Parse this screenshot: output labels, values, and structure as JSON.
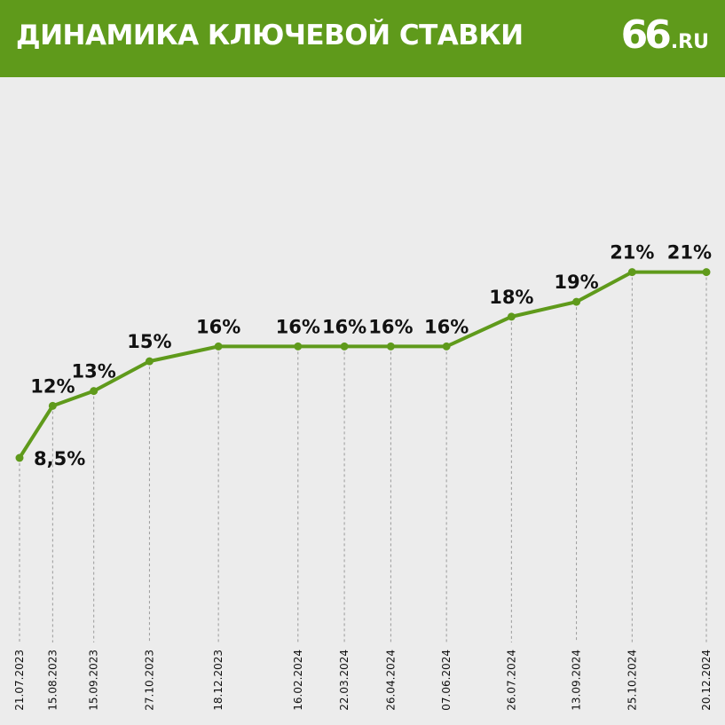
{
  "header": {
    "title": "ДИНАМИКА КЛЮЧЕВОЙ СТАВКИ",
    "logo_number": "66",
    "logo_domain": ".RU"
  },
  "colors": {
    "header_bg": "#5f9a1b",
    "line": "#5f9a1b",
    "background": "#ececec",
    "grid": "#9a9a9a"
  },
  "chart_data": {
    "type": "line",
    "title": "ДИНАМИКА КЛЮЧЕВОЙ СТАВКИ",
    "xlabel": "",
    "ylabel": "",
    "grid": "vertical dashed lines at each data point",
    "x": [
      "21.07.2023",
      "15.08.2023",
      "15.09.2023",
      "27.10.2023",
      "18.12.2023",
      "16.02.2024",
      "22.03.2024",
      "26.04.2024",
      "07.06.2024",
      "26.07.2024",
      "13.09.2024",
      "25.10.2024",
      "20.12.2024"
    ],
    "values": [
      8.5,
      12,
      13,
      15,
      16,
      16,
      16,
      16,
      16,
      18,
      19,
      21,
      21
    ],
    "labels": [
      "8,5%",
      "12%",
      "13%",
      "15%",
      "16%",
      "16%",
      "16%",
      "16%",
      "16%",
      "18%",
      "19%",
      "21%",
      "21%"
    ]
  }
}
